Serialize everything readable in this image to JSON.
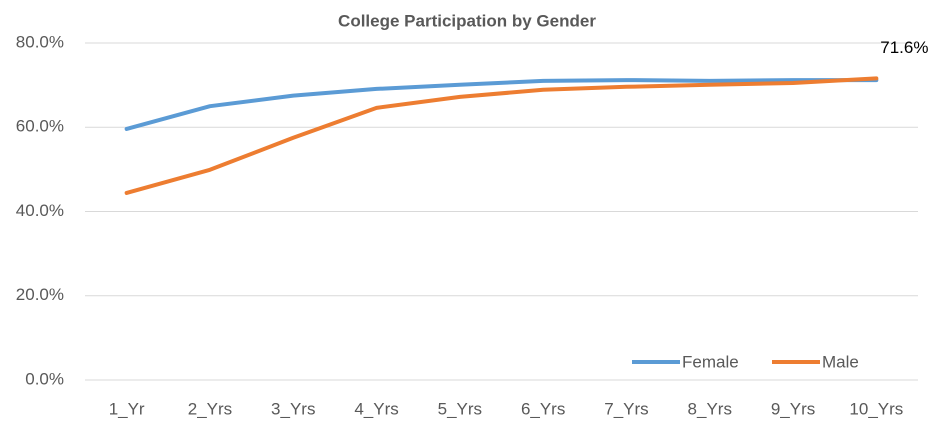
{
  "chart_data": {
    "type": "line",
    "title": "College Participation by Gender",
    "categories": [
      "1_Yr",
      "2_Yrs",
      "3_Yrs",
      "4_Yrs",
      "5_Yrs",
      "6_Yrs",
      "7_Yrs",
      "8_Yrs",
      "9_Yrs",
      "10_Yrs"
    ],
    "series": [
      {
        "name": "Female",
        "color": "#5b9bd5",
        "values": [
          59.6,
          65.0,
          67.5,
          69.1,
          70.1,
          71.0,
          71.2,
          71.0,
          71.2,
          71.2
        ]
      },
      {
        "name": "Male",
        "color": "#ed7d31",
        "values": [
          44.4,
          49.9,
          57.5,
          64.6,
          67.2,
          68.9,
          69.6,
          70.1,
          70.5,
          71.6
        ],
        "value_labels": [
          null,
          null,
          null,
          null,
          null,
          null,
          null,
          null,
          null,
          "71.6%"
        ]
      }
    ],
    "ylim": [
      0,
      80
    ],
    "yticks": [
      {
        "value": 0,
        "label": "0.0%"
      },
      {
        "value": 20,
        "label": "20.0%"
      },
      {
        "value": 40,
        "label": "40.0%"
      },
      {
        "value": 60,
        "label": "60.0%"
      },
      {
        "value": 80,
        "label": "80.0%"
      }
    ],
    "grid": true,
    "legend": "lower right"
  }
}
